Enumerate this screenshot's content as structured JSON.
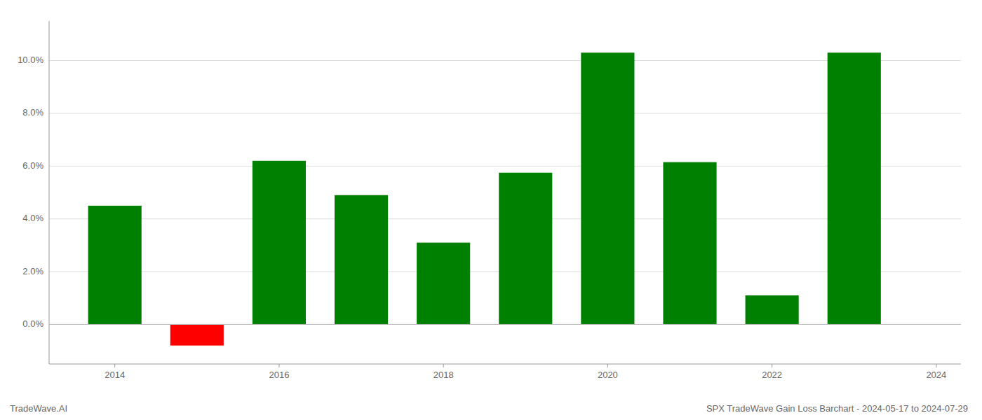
{
  "chart_data": {
    "type": "bar",
    "title": "SPX TradeWave Gain Loss Barchart - 2024-05-17 to 2024-07-29",
    "annotations": [
      "TradeWave.AI"
    ],
    "x": [
      2014,
      2015,
      2016,
      2017,
      2018,
      2019,
      2020,
      2021,
      2022,
      2023
    ],
    "values": [
      4.5,
      -0.8,
      6.2,
      4.9,
      3.1,
      5.75,
      10.3,
      6.15,
      1.1,
      10.3
    ],
    "colors": [
      "#008000",
      "#ff0000",
      "#008000",
      "#008000",
      "#008000",
      "#008000",
      "#008000",
      "#008000",
      "#008000",
      "#008000"
    ],
    "xlim": [
      2013.2,
      2024.3
    ],
    "xticks": [
      2014,
      2016,
      2018,
      2020,
      2022,
      2024
    ],
    "ylim": [
      -1.5,
      11.5
    ],
    "yticks": [
      {
        "value": 0.0,
        "label": "0.0%"
      },
      {
        "value": 2.0,
        "label": "2.0%"
      },
      {
        "value": 4.0,
        "label": "4.0%"
      },
      {
        "value": 6.0,
        "label": "6.0%"
      },
      {
        "value": 8.0,
        "label": "8.0%"
      },
      {
        "value": 10.0,
        "label": "10.0%"
      }
    ],
    "grid": true
  }
}
